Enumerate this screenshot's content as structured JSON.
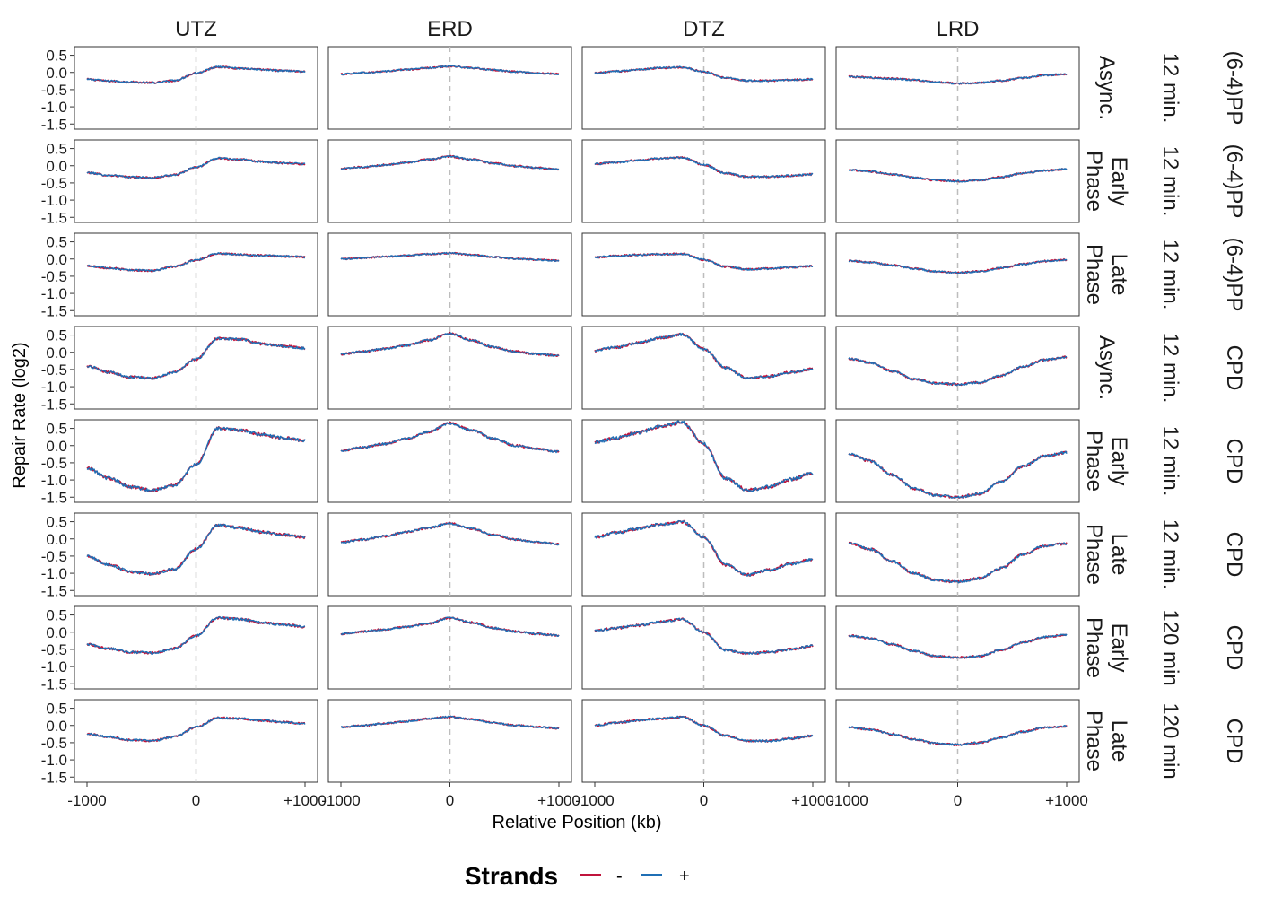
{
  "chart_data": {
    "type": "line",
    "title": "",
    "xlabel": "Relative Position (kb)",
    "ylabel": "Repair Rate (log2)",
    "x_range": [
      -1000,
      1000
    ],
    "ylim": [
      -1.65,
      0.75
    ],
    "x_tick_values": [
      -1000,
      0,
      1000
    ],
    "x_tick_labels": [
      "-1000",
      "0",
      "+1000"
    ],
    "y_tick_values": [
      0.5,
      0.0,
      -0.5,
      -1.0,
      -1.5
    ],
    "y_tick_labels": [
      "0.5",
      "0.0",
      "-0.5",
      "-1.0",
      "-1.5"
    ],
    "reference_line_x": 0,
    "grid": false,
    "columns": [
      "UTZ",
      "ERD",
      "DTZ",
      "LRD"
    ],
    "rows": [
      {
        "phase": "Async.",
        "time": "12 min.",
        "product": "(6-4)PP"
      },
      {
        "phase": "Early Phase",
        "time": "12 min.",
        "product": "(6-4)PP"
      },
      {
        "phase": "Late Phase",
        "time": "12 min.",
        "product": "(6-4)PP"
      },
      {
        "phase": "Async.",
        "time": "12 min.",
        "product": "CPD"
      },
      {
        "phase": "Early Phase",
        "time": "12 min.",
        "product": "CPD"
      },
      {
        "phase": "Late Phase",
        "time": "12 min.",
        "product": "CPD"
      },
      {
        "phase": "Early Phase",
        "time": "120 min",
        "product": "CPD"
      },
      {
        "phase": "Late Phase",
        "time": "120 min",
        "product": "CPD"
      }
    ],
    "legend": {
      "title": "Strands",
      "position": "bottom",
      "entries": [
        {
          "label": "-",
          "color": "#c0143c"
        },
        {
          "label": "+",
          "color": "#1f6fb5"
        }
      ]
    },
    "series_x": [
      -1000,
      -800,
      -600,
      -400,
      -200,
      0,
      200,
      400,
      600,
      800,
      1000
    ],
    "panels": [
      [
        [
          -0.2,
          -0.25,
          -0.28,
          -0.3,
          -0.24,
          -0.02,
          0.16,
          0.12,
          0.08,
          0.05,
          0.02
        ],
        [
          -0.05,
          -0.01,
          0.03,
          0.08,
          0.13,
          0.18,
          0.13,
          0.07,
          0.02,
          -0.02,
          -0.05
        ],
        [
          -0.02,
          0.03,
          0.08,
          0.13,
          0.15,
          0.02,
          -0.16,
          -0.24,
          -0.24,
          -0.22,
          -0.2
        ],
        [
          -0.12,
          -0.15,
          -0.18,
          -0.22,
          -0.28,
          -0.32,
          -0.3,
          -0.24,
          -0.16,
          -0.08,
          -0.05
        ]
      ],
      [
        [
          -0.2,
          -0.28,
          -0.33,
          -0.35,
          -0.27,
          -0.05,
          0.22,
          0.18,
          0.12,
          0.08,
          0.05
        ],
        [
          -0.08,
          -0.04,
          0.02,
          0.09,
          0.18,
          0.27,
          0.18,
          0.07,
          -0.01,
          -0.06,
          -0.1
        ],
        [
          0.05,
          0.1,
          0.16,
          0.21,
          0.24,
          0.03,
          -0.22,
          -0.32,
          -0.32,
          -0.29,
          -0.25
        ],
        [
          -0.12,
          -0.17,
          -0.25,
          -0.34,
          -0.42,
          -0.45,
          -0.42,
          -0.33,
          -0.22,
          -0.14,
          -0.1
        ]
      ],
      [
        [
          -0.2,
          -0.26,
          -0.32,
          -0.34,
          -0.22,
          -0.03,
          0.16,
          0.13,
          0.1,
          0.08,
          0.06
        ],
        [
          0.0,
          0.03,
          0.07,
          0.1,
          0.14,
          0.17,
          0.12,
          0.06,
          0.01,
          -0.02,
          -0.05
        ],
        [
          0.05,
          0.09,
          0.12,
          0.14,
          0.15,
          -0.02,
          -0.22,
          -0.3,
          -0.28,
          -0.24,
          -0.2
        ],
        [
          -0.05,
          -0.1,
          -0.18,
          -0.28,
          -0.36,
          -0.4,
          -0.36,
          -0.26,
          -0.15,
          -0.06,
          -0.02
        ]
      ],
      [
        [
          -0.4,
          -0.58,
          -0.72,
          -0.75,
          -0.58,
          -0.2,
          0.4,
          0.38,
          0.25,
          0.18,
          0.12
        ],
        [
          -0.05,
          0.02,
          0.1,
          0.2,
          0.35,
          0.55,
          0.35,
          0.15,
          0.02,
          -0.05,
          -0.1
        ],
        [
          0.05,
          0.15,
          0.28,
          0.42,
          0.52,
          0.1,
          -0.45,
          -0.75,
          -0.7,
          -0.58,
          -0.48
        ],
        [
          -0.18,
          -0.3,
          -0.55,
          -0.78,
          -0.9,
          -0.93,
          -0.88,
          -0.68,
          -0.42,
          -0.22,
          -0.14
        ]
      ],
      [
        [
          -0.65,
          -0.95,
          -1.2,
          -1.3,
          -1.15,
          -0.55,
          0.5,
          0.45,
          0.32,
          0.22,
          0.15
        ],
        [
          -0.15,
          -0.05,
          0.05,
          0.2,
          0.4,
          0.65,
          0.45,
          0.2,
          0.0,
          -0.1,
          -0.18
        ],
        [
          0.1,
          0.22,
          0.38,
          0.55,
          0.68,
          0.05,
          -0.95,
          -1.3,
          -1.2,
          -0.98,
          -0.8
        ],
        [
          -0.25,
          -0.45,
          -0.85,
          -1.25,
          -1.45,
          -1.5,
          -1.4,
          -1.05,
          -0.6,
          -0.3,
          -0.2
        ]
      ],
      [
        [
          -0.5,
          -0.75,
          -0.95,
          -1.02,
          -0.88,
          -0.3,
          0.4,
          0.32,
          0.2,
          0.12,
          0.05
        ],
        [
          -0.1,
          -0.02,
          0.08,
          0.2,
          0.32,
          0.45,
          0.3,
          0.12,
          -0.02,
          -0.1,
          -0.15
        ],
        [
          0.05,
          0.18,
          0.3,
          0.42,
          0.5,
          0.05,
          -0.75,
          -1.05,
          -0.9,
          -0.72,
          -0.6
        ],
        [
          -0.12,
          -0.3,
          -0.65,
          -1.0,
          -1.2,
          -1.25,
          -1.15,
          -0.85,
          -0.45,
          -0.2,
          -0.14
        ]
      ],
      [
        [
          -0.35,
          -0.48,
          -0.58,
          -0.6,
          -0.48,
          -0.1,
          0.42,
          0.38,
          0.28,
          0.22,
          0.16
        ],
        [
          -0.05,
          0.02,
          0.08,
          0.15,
          0.25,
          0.42,
          0.28,
          0.12,
          0.02,
          -0.05,
          -0.1
        ],
        [
          0.05,
          0.12,
          0.2,
          0.3,
          0.38,
          0.0,
          -0.52,
          -0.62,
          -0.58,
          -0.5,
          -0.4
        ],
        [
          -0.1,
          -0.18,
          -0.35,
          -0.55,
          -0.7,
          -0.74,
          -0.7,
          -0.52,
          -0.3,
          -0.14,
          -0.08
        ]
      ],
      [
        [
          -0.25,
          -0.33,
          -0.42,
          -0.44,
          -0.33,
          -0.05,
          0.22,
          0.2,
          0.15,
          0.1,
          0.05
        ],
        [
          -0.05,
          0.0,
          0.06,
          0.12,
          0.2,
          0.25,
          0.18,
          0.08,
          0.0,
          -0.04,
          -0.08
        ],
        [
          0.0,
          0.08,
          0.15,
          0.2,
          0.25,
          0.0,
          -0.3,
          -0.45,
          -0.45,
          -0.38,
          -0.3
        ],
        [
          -0.05,
          -0.12,
          -0.25,
          -0.4,
          -0.52,
          -0.56,
          -0.5,
          -0.35,
          -0.18,
          -0.06,
          -0.02
        ]
      ]
    ]
  }
}
